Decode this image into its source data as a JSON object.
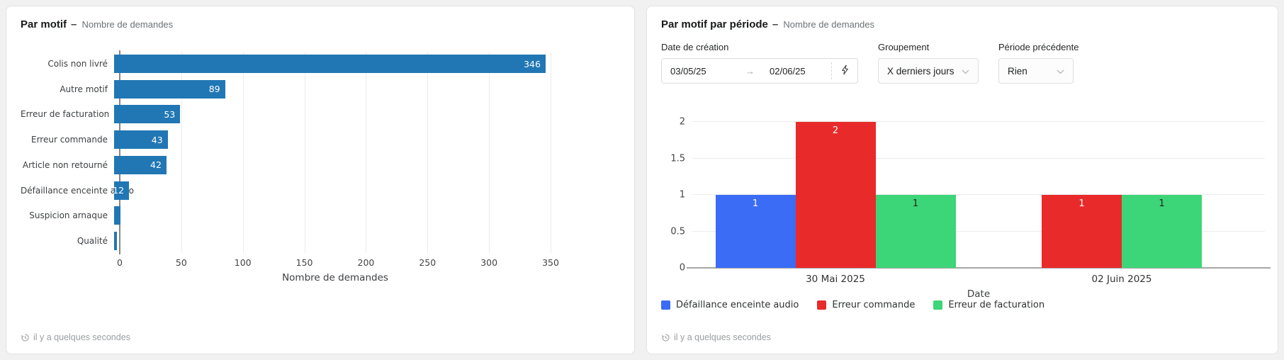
{
  "page": {
    "background": "#f1f1f2"
  },
  "panels": {
    "left": {
      "title": "Par motif",
      "dash": "–",
      "subtitle": "Nombre de demandes",
      "footer_text": "il y a quelques secondes",
      "footer_icon": "clock-history-icon"
    },
    "right": {
      "title": "Par motif par période",
      "dash": "–",
      "subtitle": "Nombre de demandes",
      "controls": {
        "date": {
          "label": "Date de création",
          "start_value": "03/05/25",
          "arrow": "→",
          "end_value": "02/06/25",
          "icon": "lightning-icon"
        },
        "grouping": {
          "label": "Groupement",
          "value": "X derniers jours",
          "icon": "chevron-down-icon"
        },
        "previous_period": {
          "label": "Période précédente",
          "value": "Rien",
          "icon": "chevron-down-icon"
        }
      },
      "footer_text": "il y a quelques secondes",
      "footer_icon": "clock-history-icon"
    }
  },
  "chart_data": [
    {
      "id": "par-motif",
      "type": "bar",
      "orientation": "horizontal",
      "title": "Par motif",
      "subtitle": "Nombre de demandes",
      "categories": [
        "Colis non livré",
        "Autre motif",
        "Erreur de facturation",
        "Erreur commande",
        "Article non retourné",
        "Défaillance enceinte audio",
        "Suspicion arnaque",
        "Qualité"
      ],
      "values": [
        346,
        89,
        53,
        43,
        42,
        12,
        5,
        2
      ],
      "value_labels_visible": [
        true,
        true,
        true,
        true,
        true,
        true,
        false,
        false
      ],
      "xlabel": "Nombre de demandes",
      "xlim": [
        0,
        350
      ],
      "xticks": [
        0,
        50,
        100,
        150,
        200,
        250,
        300,
        350
      ],
      "bar_color": "#2177b4",
      "grid": "vertical"
    },
    {
      "id": "par-motif-par-periode",
      "type": "bar",
      "orientation": "vertical",
      "title": "Par motif par période",
      "subtitle": "Nombre de demandes",
      "categories": [
        "30 Mai 2025",
        "02 Juin 2025"
      ],
      "series": [
        {
          "name": "Défaillance enceinte audio",
          "color": "#3b6cf6",
          "label_color": "#ffffff",
          "values": [
            1,
            null
          ]
        },
        {
          "name": "Erreur commande",
          "color": "#e92a2a",
          "label_color": "#ffffff",
          "values": [
            2,
            1
          ]
        },
        {
          "name": "Erreur de facturation",
          "color": "#3cd578",
          "label_color": "#1f1f1f",
          "values": [
            1,
            1
          ]
        }
      ],
      "xlabel": "Date",
      "ylim": [
        0,
        2
      ],
      "yticks": [
        0,
        0.5,
        1,
        1.5,
        2
      ],
      "grid": "horizontal",
      "legend_position": "bottom"
    }
  ]
}
